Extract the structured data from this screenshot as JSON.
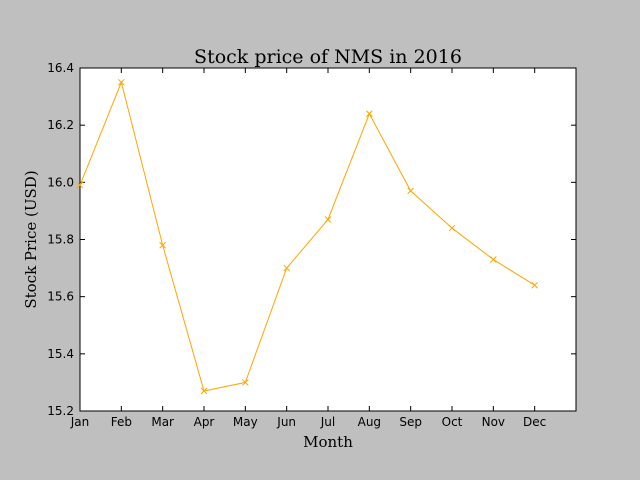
{
  "chart_data": {
    "type": "line",
    "title": "Stock price of NMS in 2016",
    "xlabel": "Month",
    "ylabel": "Stock Price (USD)",
    "categories": [
      "Jan",
      "Feb",
      "Mar",
      "Apr",
      "May",
      "Jun",
      "Jul",
      "Aug",
      "Sep",
      "Oct",
      "Nov",
      "Dec"
    ],
    "series": [
      {
        "values": [
          15.99,
          16.35,
          15.78,
          15.27,
          15.3,
          15.7,
          15.87,
          16.24,
          15.97,
          15.84,
          15.73,
          15.64
        ],
        "color": "#ffa500",
        "marker": "x"
      }
    ],
    "ylim": [
      15.2,
      16.4
    ],
    "yticks": [
      "15.2",
      "15.4",
      "15.6",
      "15.8",
      "16.0",
      "16.2",
      "16.4"
    ],
    "grid": false,
    "plot_background": "#ffffff",
    "figure_background": "#bfbfbf"
  }
}
